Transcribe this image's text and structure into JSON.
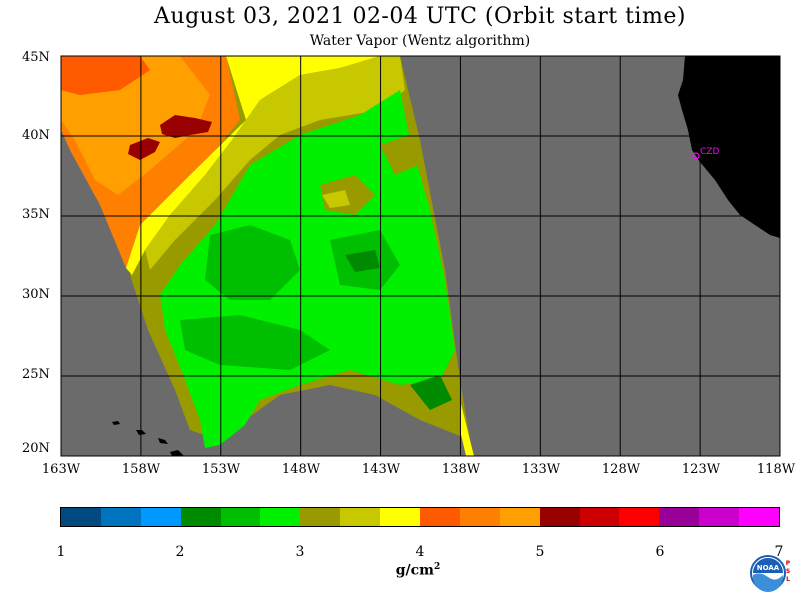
{
  "title": "August 03, 2021  02-04 UTC  (Orbit start time)",
  "subtitle": "Water Vapor (Wentz algorithm)",
  "lat_labels": [
    "45N",
    "40N",
    "35N",
    "30N",
    "25N",
    "20N"
  ],
  "lon_labels": [
    "163W",
    "158W",
    "153W",
    "148W",
    "143W",
    "138W",
    "133W",
    "128W",
    "123W",
    "118W"
  ],
  "station_label": "CZD",
  "colorbar": {
    "tick_labels": [
      "1",
      "2",
      "3",
      "4",
      "5",
      "6",
      "7"
    ],
    "units": "g/cm",
    "units_sup": "2",
    "colors": [
      "#004a80",
      "#0073bf",
      "#0099ff",
      "#008a00",
      "#00bf00",
      "#00f000",
      "#999900",
      "#c8c800",
      "#ffff00",
      "#ff5a00",
      "#ff7f00",
      "#ffa000",
      "#990000",
      "#cc0000",
      "#ff0000",
      "#990099",
      "#cc00cc",
      "#ff00ff"
    ]
  },
  "map_colors": {
    "no_data": "#6b6b6b",
    "land": "#000000",
    "grid": "#000000"
  },
  "logos": {
    "noaa": "NOAA",
    "psl": "PSL"
  }
}
